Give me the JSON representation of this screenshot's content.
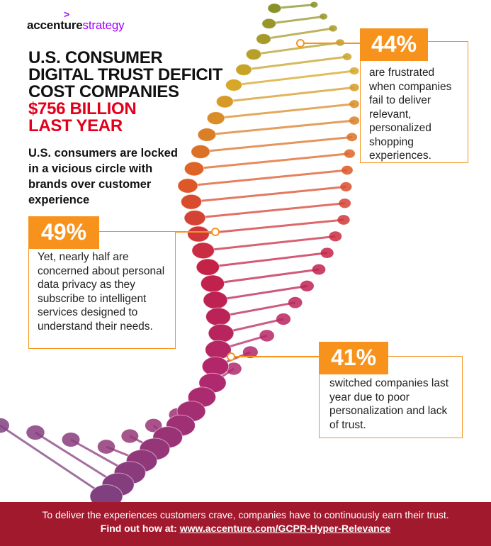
{
  "brand": {
    "name_bold": "accenture",
    "name_light": "strategy",
    "mark": ">"
  },
  "headline": {
    "line1": "U.S. CONSUMER",
    "line2": "DIGITAL TRUST DEFICIT",
    "line3": "COST COMPANIES",
    "line4": "$756 BILLION",
    "line5": "LAST YEAR"
  },
  "subhead": "U.S. consumers are locked in a vicious circle with brands over customer experience",
  "stats": [
    {
      "value": "44%",
      "text": "are frustrated when companies fail to deliver relevant, personalized shopping experiences."
    },
    {
      "value": "49%",
      "text": "Yet, nearly half are concerned about personal data privacy as they subscribe to intelligent services designed to understand their needs."
    },
    {
      "value": "41%",
      "text": "switched companies last year due to poor personalization and lack of trust."
    }
  ],
  "footer": {
    "line1": "To deliver the experiences customers crave, companies have to continuously earn their trust.",
    "prefix": "Find out how at: ",
    "link": "www.accenture.com/GCPR-Hyper-Relevance"
  },
  "colors": {
    "accent": "#f7931d",
    "red": "#e3001b",
    "footer_bg": "#a1192d",
    "brand_purple": "#a100ff"
  }
}
